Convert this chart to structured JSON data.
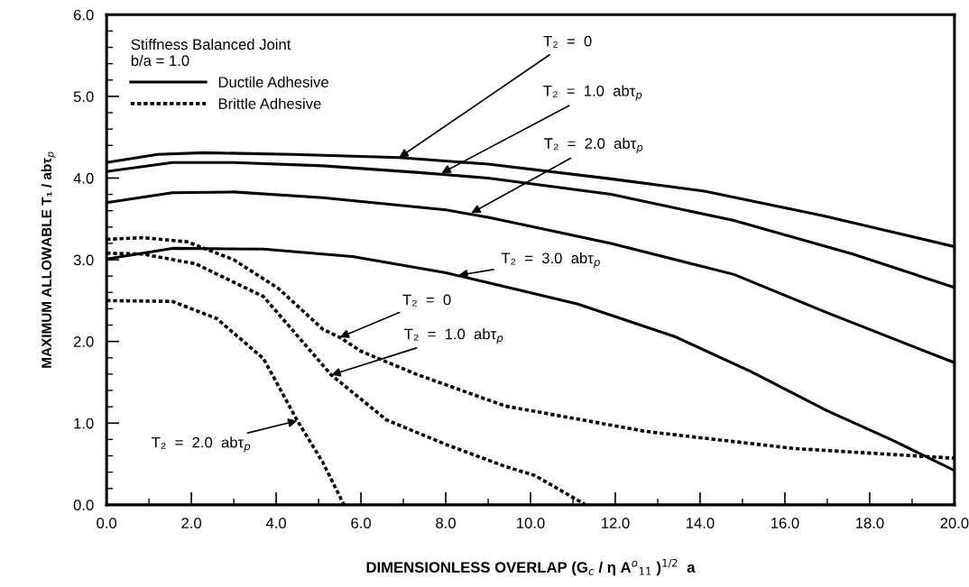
{
  "chart_data": {
    "type": "line",
    "xlabel": "DIMENSIONLESS OVERLAP (G$_{c}$ / η A$^{o}$$_{11}$ )$^{1/2}$  a",
    "ylabel": "MAXIMUM ALLOWABLE T₁ / abτ$_{p}$",
    "legend_title": "Stiffness Balanced Joint\nb/a = 1.0",
    "legend": "top left",
    "grid": false,
    "marker": "none",
    "xlim": [
      0,
      20
    ],
    "ylim": [
      0,
      6
    ],
    "xticks": [
      {
        "value": 0,
        "label": "0.0"
      },
      {
        "value": 2,
        "label": "2.0"
      },
      {
        "value": 4,
        "label": "4.0"
      },
      {
        "value": 6,
        "label": "6.0"
      },
      {
        "value": 8,
        "label": "8.0"
      },
      {
        "value": 10,
        "label": "10.0"
      },
      {
        "value": 12,
        "label": "12.0"
      },
      {
        "value": 14,
        "label": "14.0"
      },
      {
        "value": 16,
        "label": "16.0"
      },
      {
        "value": 18,
        "label": "18.0"
      },
      {
        "value": 20,
        "label": "20.0"
      }
    ],
    "yticks": [
      {
        "value": 0,
        "label": "0.0"
      },
      {
        "value": 1,
        "label": "1.0"
      },
      {
        "value": 2,
        "label": "2.0"
      },
      {
        "value": 3,
        "label": "3.0"
      },
      {
        "value": 4,
        "label": "4.0"
      },
      {
        "value": 5,
        "label": "5.0"
      },
      {
        "value": 6,
        "label": "6.0"
      }
    ],
    "series": [
      {
        "name": "Ductile Adhesive",
        "color": "#000000",
        "line_style": "solid",
        "x": [
          0,
          1.2,
          2.3,
          4.4,
          6.9,
          9.0,
          11.9,
          14.1,
          16.9,
          20
        ],
        "values": [
          4.19,
          4.29,
          4.31,
          4.29,
          4.25,
          4.17,
          3.99,
          3.84,
          3.54,
          3.16
        ]
      },
      {
        "color": "#000000",
        "line_style": "solid",
        "x": [
          0,
          1.55,
          3.0,
          5.1,
          7.3,
          9.0,
          11.9,
          14.8,
          17.6,
          20
        ],
        "values": [
          4.08,
          4.19,
          4.19,
          4.15,
          4.07,
          4.0,
          3.8,
          3.48,
          3.07,
          2.66
        ]
      },
      {
        "color": "#000000",
        "line_style": "solid",
        "x": [
          0,
          1.55,
          3.0,
          5.1,
          8.0,
          9.0,
          11.9,
          14.8,
          17.0,
          20
        ],
        "values": [
          3.7,
          3.82,
          3.83,
          3.76,
          3.61,
          3.52,
          3.2,
          2.82,
          2.35,
          1.74
        ]
      },
      {
        "color": "#000000",
        "line_style": "solid",
        "x": [
          0,
          1.55,
          3.7,
          5.8,
          8.0,
          9.0,
          11.1,
          13.4,
          15.2,
          17.0,
          18.5,
          20
        ],
        "values": [
          3.01,
          3.14,
          3.13,
          3.04,
          2.84,
          2.72,
          2.46,
          2.06,
          1.63,
          1.15,
          0.8,
          0.42
        ]
      },
      {
        "name": "Brittle Adhesive",
        "color": "#000000",
        "line_style": "dotted",
        "x": [
          0,
          0.85,
          1.9,
          3.0,
          4.05,
          5.1,
          5.5,
          6.0,
          7.3,
          9.4,
          12.7,
          16.2,
          20
        ],
        "values": [
          3.25,
          3.27,
          3.22,
          3.0,
          2.65,
          2.15,
          2.05,
          1.88,
          1.6,
          1.21,
          0.9,
          0.69,
          0.57
        ]
      },
      {
        "color": "#000000",
        "line_style": "dotted",
        "x": [
          0,
          0.85,
          2.1,
          3.7,
          5.3,
          6.6,
          8.0,
          9.4,
          10.1,
          11.3
        ],
        "values": [
          3.08,
          3.07,
          2.95,
          2.55,
          1.59,
          1.04,
          0.74,
          0.47,
          0.36,
          0
        ]
      },
      {
        "color": "#000000",
        "line_style": "dotted",
        "x": [
          0,
          1.55,
          2.6,
          3.7,
          4.5,
          5.1,
          5.6
        ],
        "values": [
          2.5,
          2.49,
          2.28,
          1.79,
          1.03,
          0.52,
          0
        ]
      }
    ],
    "annotations": [
      {
        "text": "T₂  =  0",
        "x": 6.9,
        "y": 4.25
      },
      {
        "text": "T₂  =  1.0  abτ$_{p}$",
        "x": 7.9,
        "y": 4.06
      },
      {
        "text": "T₂  =  2.0  abτ$_{p}$",
        "x": 8.6,
        "y": 3.57
      },
      {
        "text": "T₂  =  3.0  abτ$_{p}$",
        "x": 8.3,
        "y": 2.81
      },
      {
        "text": "T₂  =  0",
        "x": 5.5,
        "y": 2.05
      },
      {
        "text": "T₂  =  1.0  abτ$_{p}$",
        "x": 5.3,
        "y": 1.59
      },
      {
        "text": "T₂  =  2.0  abτ$_{p}$",
        "x": 4.5,
        "y": 1.03
      }
    ]
  }
}
